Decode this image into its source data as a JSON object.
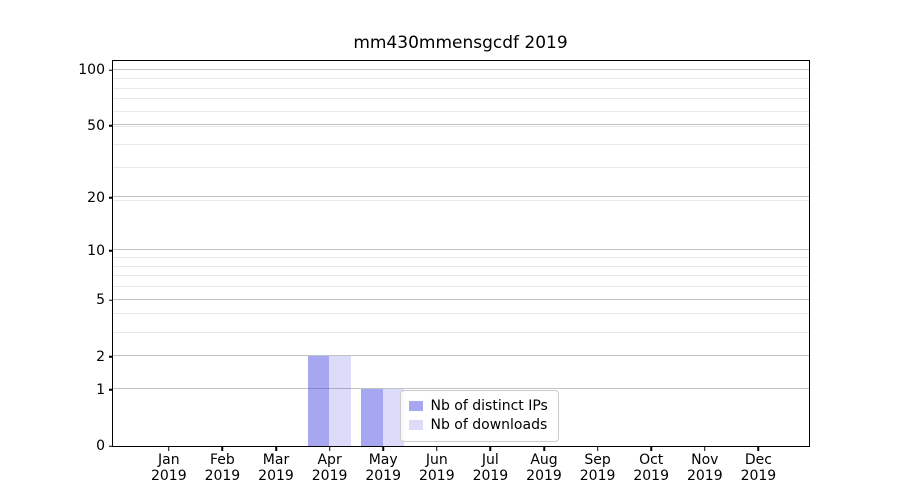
{
  "title": "mm430mmensgcdf 2019",
  "chart_data": {
    "type": "bar",
    "title": "mm430mmensgcdf 2019",
    "categories": [
      "Jan",
      "Feb",
      "Mar",
      "Apr",
      "May",
      "Jun",
      "Jul",
      "Aug",
      "Sep",
      "Oct",
      "Nov",
      "Dec"
    ],
    "x_year_label": "2019",
    "series": [
      {
        "name": "Nb of distinct IPs",
        "color": "#a7a7f1",
        "fill_rgba": "rgba(60,60,225,0.45)",
        "values": [
          0,
          0,
          0,
          2,
          1,
          0,
          0,
          0,
          0,
          0,
          0,
          0
        ]
      },
      {
        "name": "Nb of downloads",
        "color": "#dcdcf8",
        "fill_rgba": "rgba(60,60,225,0.18)",
        "values": [
          0,
          0,
          0,
          2,
          1,
          0,
          0,
          0,
          0,
          0,
          0,
          0
        ]
      }
    ],
    "yscale": "log1p",
    "ylim": [
      0,
      111.8
    ],
    "y_tick_values": [
      0,
      1,
      2,
      5,
      10,
      20,
      50,
      100
    ],
    "y_tick_labels": [
      "0",
      "1",
      "2",
      "5",
      "10",
      "20",
      "50",
      "100"
    ],
    "y_minor_grid_values": [
      1,
      2,
      3,
      4,
      5,
      6,
      7,
      8,
      9,
      19,
      29,
      39,
      49,
      59,
      69,
      79,
      89
    ],
    "grid": true,
    "legend_position": "lower center-right inside plot",
    "xlabel": "",
    "ylabel": ""
  }
}
